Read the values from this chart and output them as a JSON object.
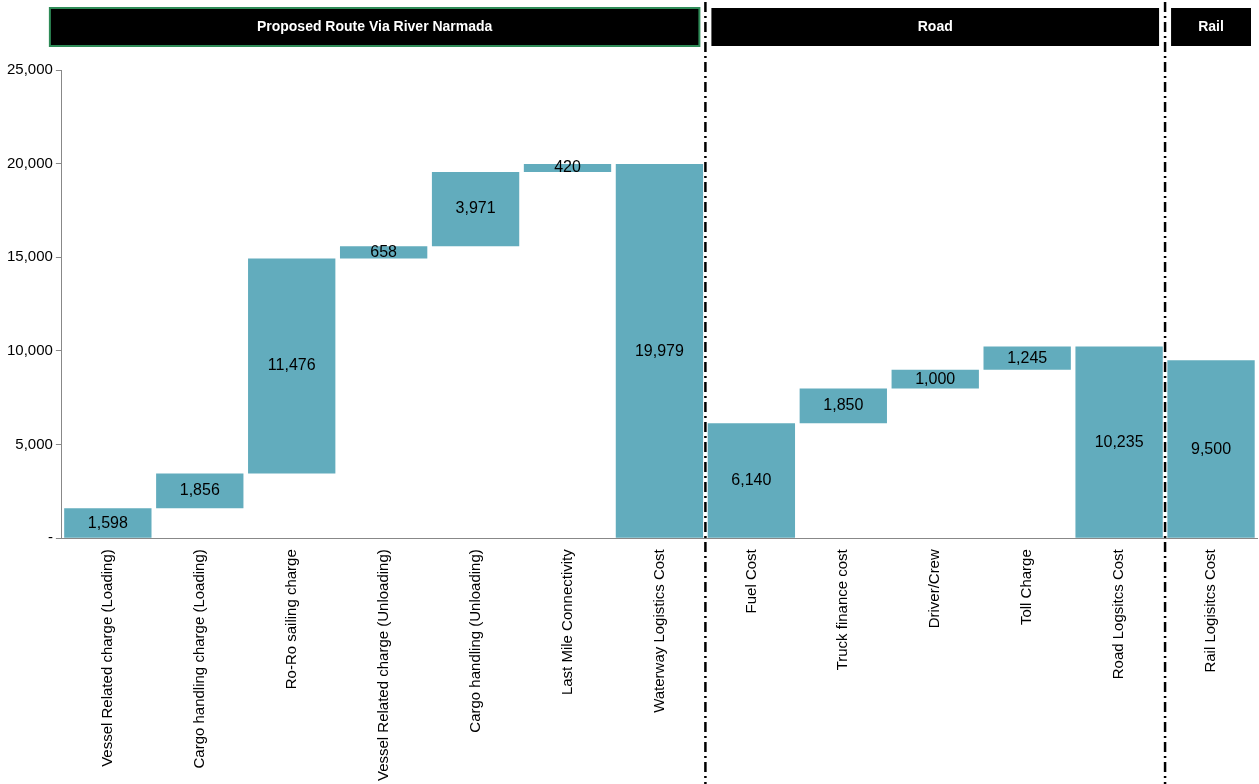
{
  "chart_data": {
    "type": "bar",
    "categories": [
      "Vessel Related charge (Loading)",
      "Cargo handling charge (Loading)",
      "Ro-Ro sailing charge",
      "Vessel Related charge (Unloading)",
      "Cargo handling (Unloading)",
      "Last Mile Connectivity",
      "Waterway Logistics Cost",
      "Fuel Cost",
      "Truck finance cost",
      "Driver/Crew",
      "Toll Charge",
      "Road Logsitcs Cost",
      "Rail Logisitcs Cost"
    ],
    "values": [
      1598,
      1856,
      11476,
      658,
      3971,
      420,
      19979,
      6140,
      1850,
      1000,
      1245,
      10235,
      9500
    ],
    "base": [
      0,
      1598,
      3454,
      14930,
      15588,
      19559,
      0,
      0,
      6140,
      7990,
      8990,
      0,
      0
    ],
    "value_labels": [
      "1,598",
      "1,856",
      "11,476",
      "658",
      "3,971",
      "420",
      "19,979",
      "6,140",
      "1,850",
      "1,000",
      "1,245",
      "10,235",
      "9,500"
    ],
    "color": "#62acbd",
    "ylim": [
      0,
      25000
    ],
    "yticks": [
      {
        "value": 0,
        "label": "-"
      },
      {
        "value": 5000,
        "label": "5,000"
      },
      {
        "value": 10000,
        "label": "10,000"
      },
      {
        "value": 15000,
        "label": "15,000"
      },
      {
        "value": 20000,
        "label": "20,000"
      },
      {
        "value": 25000,
        "label": "25,000"
      }
    ],
    "grid": false,
    "legend": false,
    "annotations": [
      "Proposed Route Via River Narmada",
      "Road",
      "Rail"
    ]
  }
}
